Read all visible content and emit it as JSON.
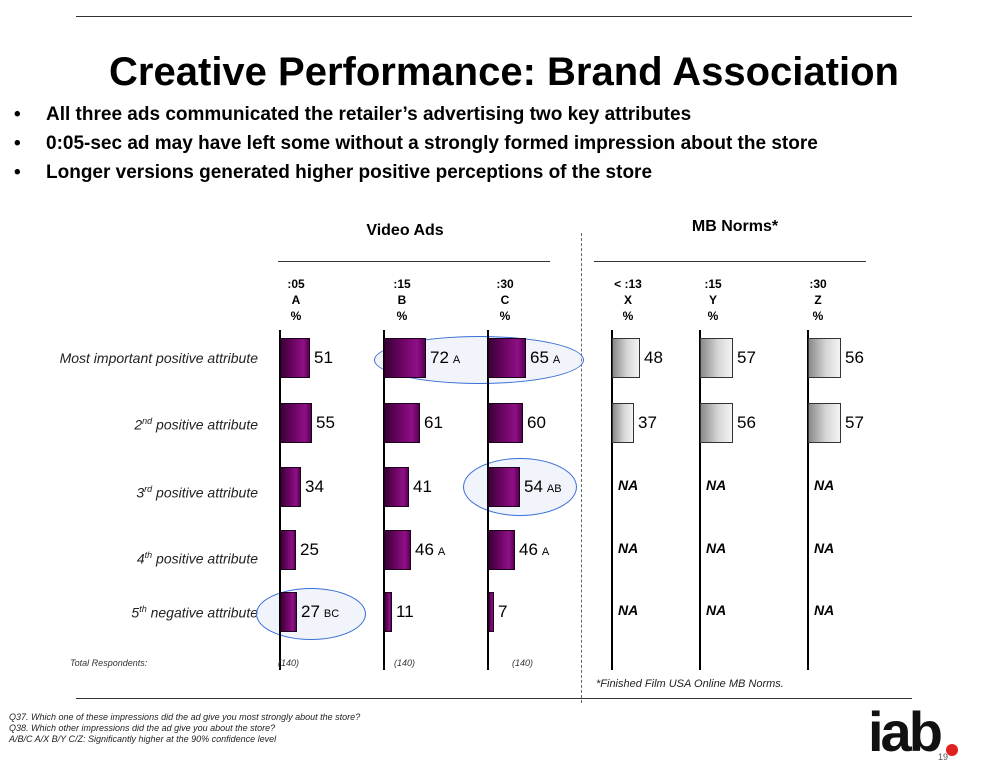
{
  "title": "Creative Performance:  Brand Association",
  "bullets": [
    "All three ads communicated the retailer’s advertising two key attributes",
    "0:05-sec ad may have left some without a strongly formed impression about the store",
    "Longer versions generated higher positive perceptions of the store"
  ],
  "video_ads_header": "Video Ads",
  "norms_header": "MB Norms*",
  "columns": [
    {
      "dur": ":05",
      "letter": "A",
      "unit": "%"
    },
    {
      "dur": ":15",
      "letter": "B",
      "unit": "%"
    },
    {
      "dur": ":30",
      "letter": "C",
      "unit": "%"
    },
    {
      "dur": "< :13",
      "letter": "X",
      "unit": "%"
    },
    {
      "dur": ":15",
      "letter": "Y",
      "unit": "%"
    },
    {
      "dur": ":30",
      "letter": "Z",
      "unit": "%"
    }
  ],
  "rows": [
    {
      "pre": "Most important",
      "sup": "",
      "post": " positive attribute"
    },
    {
      "pre": "2",
      "sup": "nd",
      "post": " positive attribute"
    },
    {
      "pre": "3",
      "sup": "rd",
      "post": " positive attribute"
    },
    {
      "pre": "4",
      "sup": "th",
      "post": " positive attribute"
    },
    {
      "pre": "5",
      "sup": "th",
      "post": " negative  attribute"
    }
  ],
  "chart_data": {
    "type": "bar",
    "orientation": "horizontal",
    "categories": [
      "Most important positive attribute",
      "2nd positive attribute",
      "3rd positive attribute",
      "4th positive attribute",
      "5th negative attribute"
    ],
    "series": [
      {
        "name": ":05 A",
        "values": [
          51,
          55,
          34,
          25,
          27
        ],
        "sig": [
          "",
          "",
          "",
          "",
          "BC"
        ]
      },
      {
        "name": ":15 B",
        "values": [
          72,
          61,
          41,
          46,
          11
        ],
        "sig": [
          "A",
          "",
          "",
          "A",
          ""
        ]
      },
      {
        "name": ":30 C",
        "values": [
          65,
          60,
          54,
          46,
          7
        ],
        "sig": [
          "A",
          "",
          "AB",
          "A",
          ""
        ]
      },
      {
        "name": "< :13 X",
        "values": [
          48,
          37,
          null,
          null,
          null
        ],
        "sig": [
          "",
          "",
          "",
          "",
          ""
        ]
      },
      {
        "name": ":15 Y",
        "values": [
          57,
          56,
          null,
          null,
          null
        ],
        "sig": [
          "",
          "",
          "",
          "",
          ""
        ]
      },
      {
        "name": ":30 Z",
        "values": [
          56,
          57,
          null,
          null,
          null
        ],
        "sig": [
          "",
          "",
          "",
          "",
          ""
        ]
      }
    ],
    "na_label": "NA"
  },
  "total_label": "Total Respondents:",
  "totals": [
    "(140)",
    "(140)",
    "(140)"
  ],
  "norms_note": "*Finished Film USA Online MB Norms.",
  "footnotes": [
    "Q37. Which one of these impressions did the ad give you most strongly about the store?",
    "Q38. Which other impressions did the ad give you about the store?",
    "A/B/C A/X B/Y C/Z: Significantly higher at the 90% confidence level"
  ],
  "logo_text": "iab",
  "page_number": "19",
  "colors": {
    "bar_purple": "#6e0566",
    "norm_gray": "#bdbdbd",
    "ellipse": "#3b6fd8",
    "logo_dot": "#e02020"
  }
}
